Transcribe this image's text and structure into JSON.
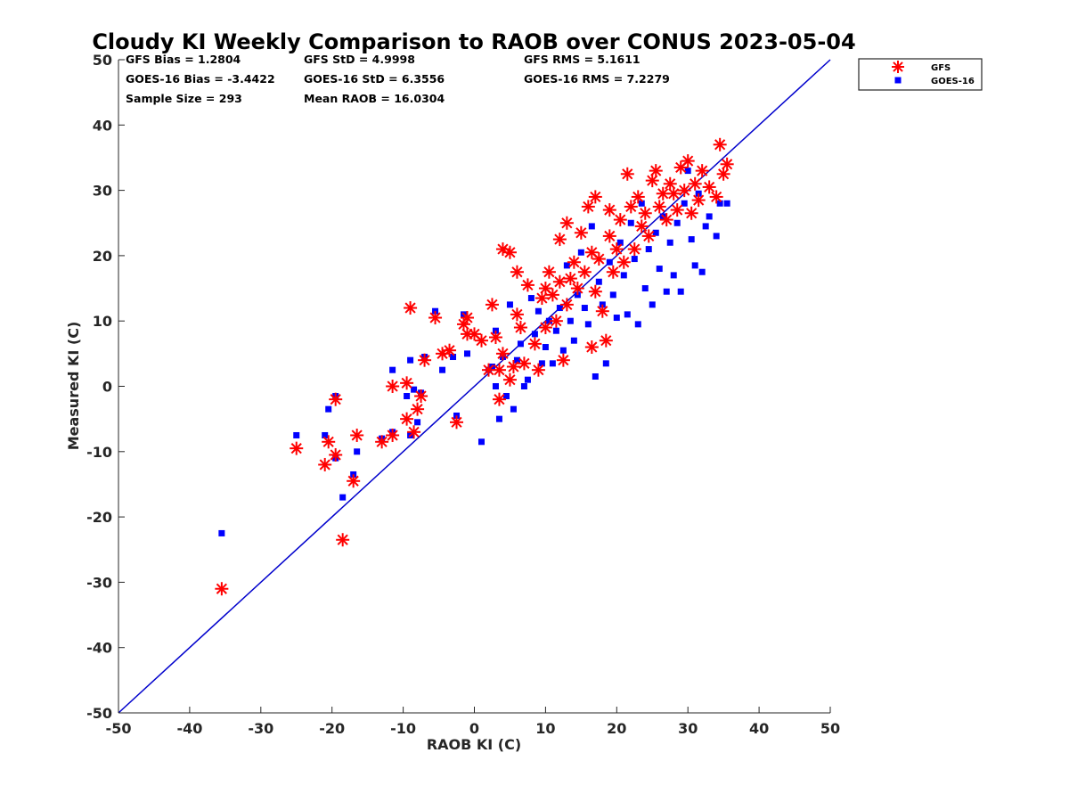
{
  "chart_data": {
    "type": "scatter",
    "title": "Cloudy KI Weekly Comparison to RAOB over CONUS 2023-05-04",
    "xlabel": "RAOB KI (C)",
    "ylabel": "Measured KI (C)",
    "xlim": [
      -50,
      50
    ],
    "ylim": [
      -50,
      50
    ],
    "xticks": [
      "-50",
      "-40",
      "-30",
      "-20",
      "-10",
      "0",
      "10",
      "20",
      "30",
      "40",
      "50"
    ],
    "yticks": [
      "50",
      "40",
      "30",
      "20",
      "10",
      "0",
      "-10",
      "-20",
      "-30",
      "-40",
      "-50"
    ],
    "grid": false,
    "legend_position": "outside top-right",
    "reference_line": {
      "from": [
        -50,
        -50
      ],
      "to": [
        50,
        50
      ],
      "color": "#0000cc"
    },
    "stats": {
      "gfs_bias": "GFS Bias = 1.2804",
      "gfs_std": "GFS StD = 4.9998",
      "gfs_rms": "GFS RMS = 5.1611",
      "goes_bias": "GOES-16 Bias = -3.4422",
      "goes_std": "GOES-16 StD = 6.3556",
      "goes_rms": "GOES-16 RMS = 7.2279",
      "sample_size": "Sample Size = 293",
      "mean_raob": "Mean RAOB = 16.0304"
    },
    "series": [
      {
        "name": "GFS",
        "marker": "asterisk",
        "color": "#ff0000",
        "points": [
          [
            -35.5,
            -31
          ],
          [
            -25,
            -9.5
          ],
          [
            -21,
            -12
          ],
          [
            -20.5,
            -8.5
          ],
          [
            -19.5,
            -2
          ],
          [
            -19.5,
            -10.5
          ],
          [
            -18.5,
            -23.5
          ],
          [
            -17,
            -14.5
          ],
          [
            -16.5,
            -7.5
          ],
          [
            -13,
            -8.5
          ],
          [
            -11.5,
            0
          ],
          [
            -11.5,
            -7.5
          ],
          [
            -9.5,
            0.5
          ],
          [
            -9.5,
            -5
          ],
          [
            -9,
            12
          ],
          [
            -8.5,
            -7
          ],
          [
            -8,
            -3.5
          ],
          [
            -7.5,
            -1.5
          ],
          [
            -7,
            4
          ],
          [
            -5.5,
            10.5
          ],
          [
            -4.5,
            5
          ],
          [
            -3.5,
            5.5
          ],
          [
            -2.5,
            -5.5
          ],
          [
            -1.5,
            9.5
          ],
          [
            -1,
            8
          ],
          [
            -1,
            10.5
          ],
          [
            0,
            8
          ],
          [
            1,
            7
          ],
          [
            2,
            2.5
          ],
          [
            2.5,
            12.5
          ],
          [
            3,
            7.5
          ],
          [
            3.5,
            2.5
          ],
          [
            3.5,
            -2
          ],
          [
            4,
            21
          ],
          [
            4,
            5
          ],
          [
            5,
            1
          ],
          [
            5.5,
            3
          ],
          [
            5,
            20.5
          ],
          [
            6,
            17.5
          ],
          [
            6,
            11
          ],
          [
            6.5,
            9
          ],
          [
            7,
            3.5
          ],
          [
            7.5,
            15.5
          ],
          [
            8.5,
            6.5
          ],
          [
            9,
            2.5
          ],
          [
            9.5,
            13.5
          ],
          [
            10,
            15
          ],
          [
            10,
            9
          ],
          [
            10.5,
            17.5
          ],
          [
            11,
            14
          ],
          [
            11.5,
            10
          ],
          [
            12,
            22.5
          ],
          [
            12,
            16
          ],
          [
            12.5,
            4
          ],
          [
            13,
            25
          ],
          [
            13,
            12.5
          ],
          [
            13.5,
            16.5
          ],
          [
            14,
            19
          ],
          [
            14.5,
            15
          ],
          [
            15,
            23.5
          ],
          [
            15.5,
            17.5
          ],
          [
            16,
            27.5
          ],
          [
            16.5,
            20.5
          ],
          [
            16.5,
            6
          ],
          [
            17,
            29
          ],
          [
            17,
            14.5
          ],
          [
            17.5,
            19.5
          ],
          [
            18,
            11.5
          ],
          [
            18.5,
            7
          ],
          [
            19,
            27
          ],
          [
            19,
            23
          ],
          [
            19.5,
            17.5
          ],
          [
            20,
            21
          ],
          [
            20.5,
            25.5
          ],
          [
            21,
            19
          ],
          [
            21.5,
            32.5
          ],
          [
            22,
            27.5
          ],
          [
            22.5,
            21
          ],
          [
            23,
            29
          ],
          [
            23.5,
            24.5
          ],
          [
            24,
            26.5
          ],
          [
            24.5,
            23
          ],
          [
            25,
            31.5
          ],
          [
            25.5,
            33
          ],
          [
            26,
            27.5
          ],
          [
            26.5,
            29.5
          ],
          [
            27,
            25.5
          ],
          [
            27.5,
            31
          ],
          [
            28,
            29.5
          ],
          [
            28.5,
            27
          ],
          [
            29,
            33.5
          ],
          [
            29.5,
            30
          ],
          [
            30,
            34.5
          ],
          [
            30.5,
            26.5
          ],
          [
            31,
            31
          ],
          [
            31.5,
            28.5
          ],
          [
            32,
            33
          ],
          [
            33,
            30.5
          ],
          [
            34,
            29
          ],
          [
            34.5,
            37
          ],
          [
            35,
            32.5
          ],
          [
            35.5,
            34
          ]
        ]
      },
      {
        "name": "GOES-16",
        "marker": "square",
        "color": "#0000ff",
        "points": [
          [
            -35.5,
            -22.5
          ],
          [
            -25,
            -7.5
          ],
          [
            -21,
            -7.5
          ],
          [
            -20.5,
            -3.5
          ],
          [
            -19.5,
            -1.5
          ],
          [
            -19.5,
            -11
          ],
          [
            -18.5,
            -17
          ],
          [
            -17,
            -13.5
          ],
          [
            -16.5,
            -10
          ],
          [
            -13,
            -8
          ],
          [
            -11.5,
            2.5
          ],
          [
            -11.5,
            -7
          ],
          [
            -9.5,
            -1.5
          ],
          [
            -9,
            -7.5
          ],
          [
            -9,
            4
          ],
          [
            -8.5,
            -0.5
          ],
          [
            -8,
            -5.5
          ],
          [
            -7.5,
            -1
          ],
          [
            -7,
            4.5
          ],
          [
            -5.5,
            11.5
          ],
          [
            -4.5,
            2.5
          ],
          [
            -3,
            4.5
          ],
          [
            -2.5,
            -4.5
          ],
          [
            -1.5,
            11
          ],
          [
            -1,
            5
          ],
          [
            1,
            -8.5
          ],
          [
            2,
            2.5
          ],
          [
            2.5,
            3
          ],
          [
            3,
            0
          ],
          [
            3,
            8.5
          ],
          [
            3.5,
            -5
          ],
          [
            4,
            4.5
          ],
          [
            4.5,
            -1.5
          ],
          [
            5,
            12.5
          ],
          [
            5.5,
            -3.5
          ],
          [
            6,
            4
          ],
          [
            6.5,
            6.5
          ],
          [
            7,
            0
          ],
          [
            7.5,
            1
          ],
          [
            8,
            13.5
          ],
          [
            8.5,
            8
          ],
          [
            9,
            11.5
          ],
          [
            9.5,
            3.5
          ],
          [
            10,
            6
          ],
          [
            10.5,
            10
          ],
          [
            11,
            3.5
          ],
          [
            11.5,
            8.5
          ],
          [
            12,
            12
          ],
          [
            12.5,
            5.5
          ],
          [
            13,
            18.5
          ],
          [
            13.5,
            10
          ],
          [
            14,
            7
          ],
          [
            14.5,
            14
          ],
          [
            15,
            20.5
          ],
          [
            15.5,
            12
          ],
          [
            16,
            9.5
          ],
          [
            16.5,
            24.5
          ],
          [
            17,
            1.5
          ],
          [
            17.5,
            16
          ],
          [
            18,
            12.5
          ],
          [
            18.5,
            3.5
          ],
          [
            19,
            19
          ],
          [
            19.5,
            14
          ],
          [
            20,
            10.5
          ],
          [
            20.5,
            22
          ],
          [
            21,
            17
          ],
          [
            21.5,
            11
          ],
          [
            22,
            25
          ],
          [
            22.5,
            19.5
          ],
          [
            23,
            9.5
          ],
          [
            23.5,
            28
          ],
          [
            24,
            15
          ],
          [
            24.5,
            21
          ],
          [
            25,
            12.5
          ],
          [
            25.5,
            23.5
          ],
          [
            26,
            18
          ],
          [
            26.5,
            26
          ],
          [
            27,
            14.5
          ],
          [
            27.5,
            22
          ],
          [
            28,
            17
          ],
          [
            28.5,
            25
          ],
          [
            29,
            14.5
          ],
          [
            29.5,
            28
          ],
          [
            30,
            33
          ],
          [
            30.5,
            22.5
          ],
          [
            31,
            18.5
          ],
          [
            31.5,
            29.5
          ],
          [
            32,
            17.5
          ],
          [
            32.5,
            24.5
          ],
          [
            33,
            26
          ],
          [
            34,
            23
          ],
          [
            34.5,
            28
          ],
          [
            35.5,
            28
          ]
        ]
      }
    ]
  }
}
